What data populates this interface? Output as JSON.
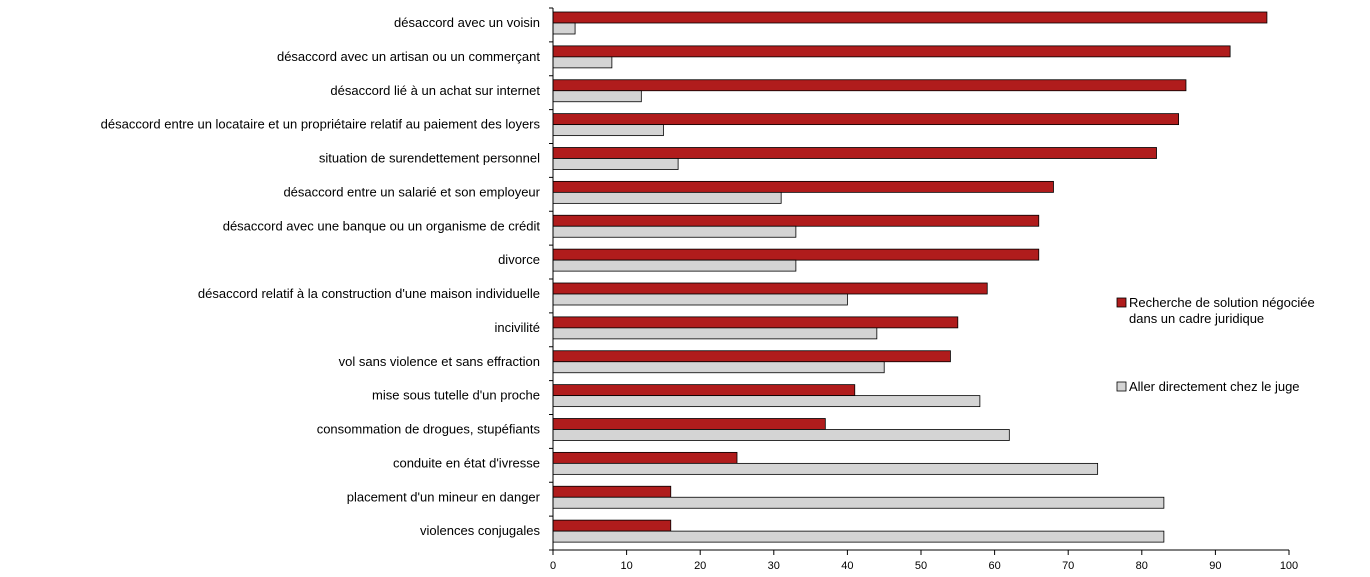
{
  "chart_data": {
    "type": "bar",
    "orientation": "horizontal",
    "categories": [
      "désaccord avec un voisin",
      "désaccord avec un artisan ou un commerçant",
      "désaccord lié à un achat sur internet",
      "désaccord entre un locataire et un propriétaire relatif au paiement des loyers",
      "situation de surendettement personnel",
      "désaccord entre un salarié et son employeur",
      "désaccord avec une banque ou un organisme de crédit",
      "divorce",
      "désaccord relatif à la construction d'une maison individuelle",
      "incivilité",
      "vol sans violence et sans effraction",
      "mise sous tutelle d'un proche",
      "consommation de drogues, stupéfiants",
      "conduite en état d'ivresse",
      "placement d'un mineur en danger",
      "violences conjugales"
    ],
    "series": [
      {
        "name": "Recherche de solution négociée dans un cadre juridique",
        "color": "#b01c1c",
        "values": [
          97,
          92,
          86,
          85,
          82,
          68,
          66,
          66,
          59,
          55,
          54,
          41,
          37,
          25,
          16,
          16
        ]
      },
      {
        "name": "Aller directement chez le juge",
        "color": "#d4d4d4",
        "values": [
          3,
          8,
          12,
          15,
          17,
          31,
          33,
          33,
          40,
          44,
          45,
          58,
          62,
          74,
          83,
          83
        ]
      }
    ],
    "xlim": [
      0,
      100
    ],
    "xticks": [
      0,
      10,
      20,
      30,
      40,
      50,
      60,
      70,
      80,
      90,
      100
    ],
    "grid": false,
    "legend_position": "right",
    "legend_lines": [
      [
        "Recherche de solution négociée",
        "dans un cadre juridique"
      ],
      [
        "Aller directement chez le juge"
      ]
    ],
    "title": "",
    "xlabel": "",
    "ylabel": ""
  }
}
